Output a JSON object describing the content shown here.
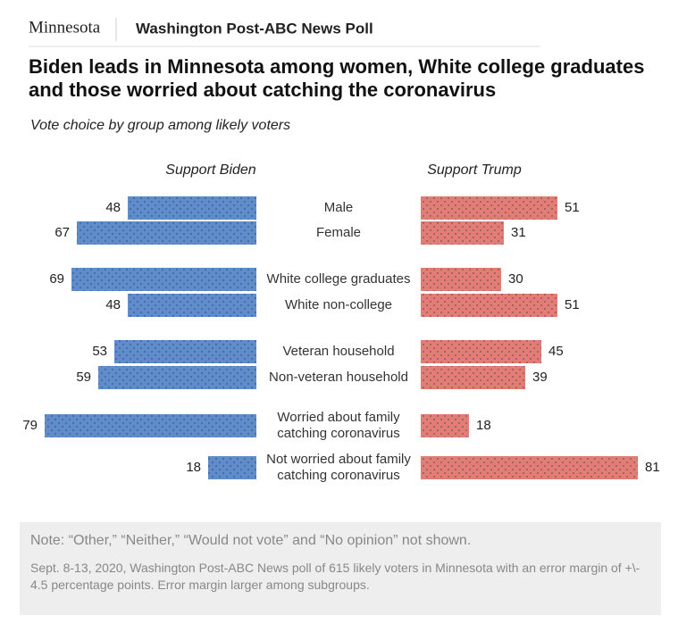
{
  "header": {
    "section": "Minnesota",
    "source_name": "Washington Post-ABC News Poll"
  },
  "chart_data": {
    "type": "butterfly",
    "title": "Biden leads in Minnesota among women, White college graduates and those worried about catching the coronavirus",
    "subtitle": "Vote choice by group among likely voters",
    "categories": [
      "Male",
      "Female",
      "White college graduates",
      "White non-college",
      "Veteran household",
      "Non-veteran household",
      "Worried about family catching coronavirus",
      "Not worried about family catching coronavirus"
    ],
    "series": [
      {
        "name": "Support Biden",
        "color": "#5f8ccb",
        "values": [
          48,
          67,
          69,
          48,
          53,
          59,
          79,
          18
        ]
      },
      {
        "name": "Support Trump",
        "color": "#e27d76",
        "values": [
          51,
          31,
          30,
          51,
          45,
          39,
          18,
          81
        ]
      }
    ]
  },
  "footer": {
    "note": "Note: “Other,” “Neither,” “Would not vote” and “No opinion” not shown.",
    "source": "Sept. 8-13, 2020, Washington Post-ABC News poll of 615 likely voters in Minnesota with an error margin of +\\- 4.5 percentage points. Error margin larger among subgroups."
  }
}
